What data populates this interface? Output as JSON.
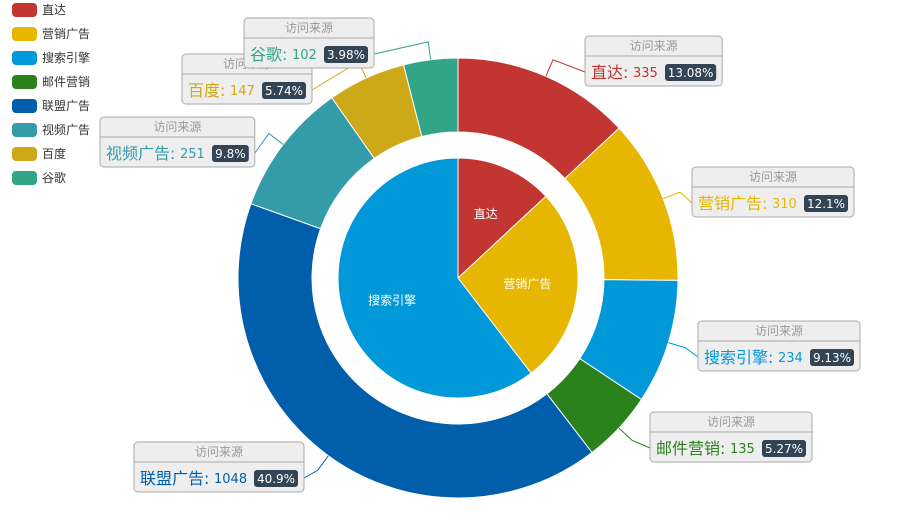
{
  "chart_data": {
    "type": "pie",
    "box_title": "访问来源",
    "legend": {
      "position": "top-left",
      "items": [
        {
          "name": "直达",
          "color": "#c23531"
        },
        {
          "name": "营销广告",
          "color": "#e6b600"
        },
        {
          "name": "搜索引擎",
          "color": "#0098d9"
        },
        {
          "name": "邮件营销",
          "color": "#2b821d"
        },
        {
          "name": "联盟广告",
          "color": "#005eaa"
        },
        {
          "name": "视频广告",
          "color": "#339ca8"
        },
        {
          "name": "百度",
          "color": "#cda819"
        },
        {
          "name": "谷歌",
          "color": "#32a487"
        }
      ]
    },
    "inner": [
      {
        "name": "直达",
        "value": 335,
        "color": "#c23531"
      },
      {
        "name": "营销广告",
        "value": 679,
        "color": "#e6b600"
      },
      {
        "name": "搜索引擎",
        "value": 1548,
        "color": "#0098d9"
      }
    ],
    "outer": [
      {
        "name": "直达",
        "value": 335,
        "percent": "13.08%",
        "color": "#c23531"
      },
      {
        "name": "营销广告",
        "value": 310,
        "percent": "12.1%",
        "color": "#e6b600"
      },
      {
        "name": "搜索引擎",
        "value": 234,
        "percent": "9.13%",
        "color": "#0098d9"
      },
      {
        "name": "邮件营销",
        "value": 135,
        "percent": "5.27%",
        "color": "#2b821d"
      },
      {
        "name": "联盟广告",
        "value": 1048,
        "percent": "40.9%",
        "color": "#005eaa"
      },
      {
        "name": "视频广告",
        "value": 251,
        "percent": "9.8%",
        "color": "#339ca8"
      },
      {
        "name": "百度",
        "value": 147,
        "percent": "5.74%",
        "color": "#cda819"
      },
      {
        "name": "谷歌",
        "value": 102,
        "percent": "3.98%",
        "color": "#32a487"
      }
    ]
  }
}
